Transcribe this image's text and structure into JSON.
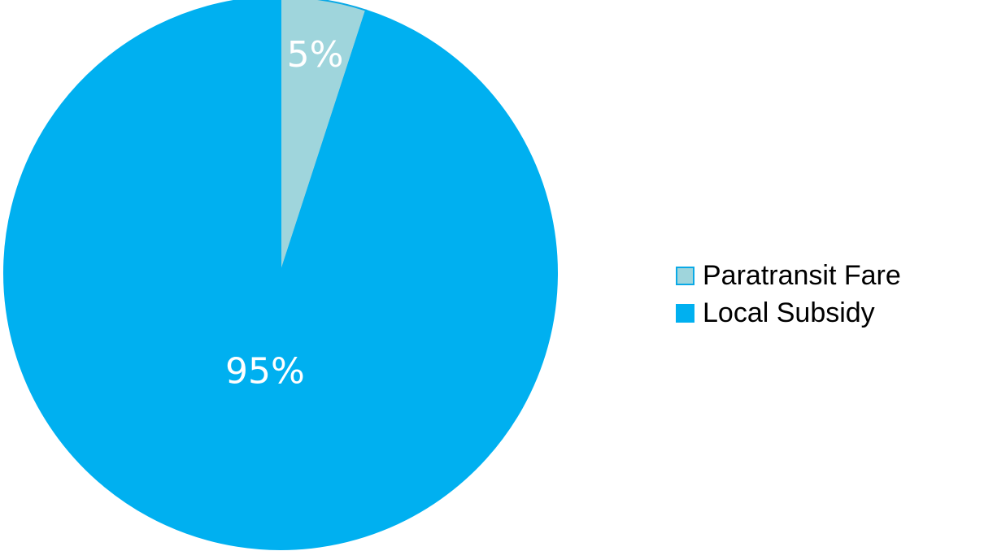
{
  "chart_data": {
    "type": "pie",
    "title": "",
    "slices": [
      {
        "label": "Paratransit Fare",
        "value": 5,
        "display": "5%",
        "color": "#9fd5dc",
        "border": "#0aa9e6"
      },
      {
        "label": "Local Subsidy",
        "value": 95,
        "display": "95%",
        "color": "#00b0f0",
        "border": "#00b0f0"
      }
    ],
    "start_angle": "12 o'clock",
    "direction": "clockwise",
    "legend_position": "right"
  }
}
